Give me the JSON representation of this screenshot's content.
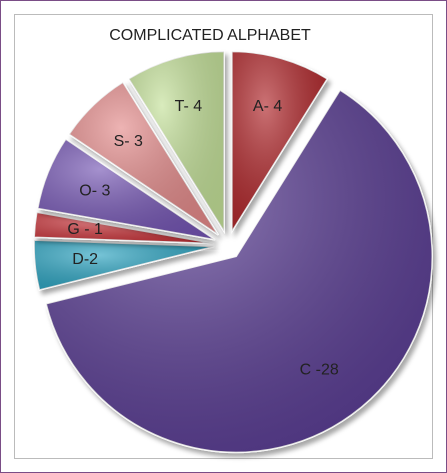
{
  "chart_data": {
    "type": "pie",
    "title": "COMPLICATED ALPHABET",
    "values": [
      4,
      28,
      2,
      1,
      3,
      3,
      4
    ],
    "value_labels": [
      "A- 4",
      "C -28",
      "D-2",
      "G - 1",
      "O- 3",
      "S- 3",
      "T- 4"
    ],
    "colors": [
      "#b0282c",
      "#5a3d94",
      "#2ea5c2",
      "#c9363a",
      "#7457b4",
      "#e48b8b",
      "#c4e199"
    ]
  }
}
